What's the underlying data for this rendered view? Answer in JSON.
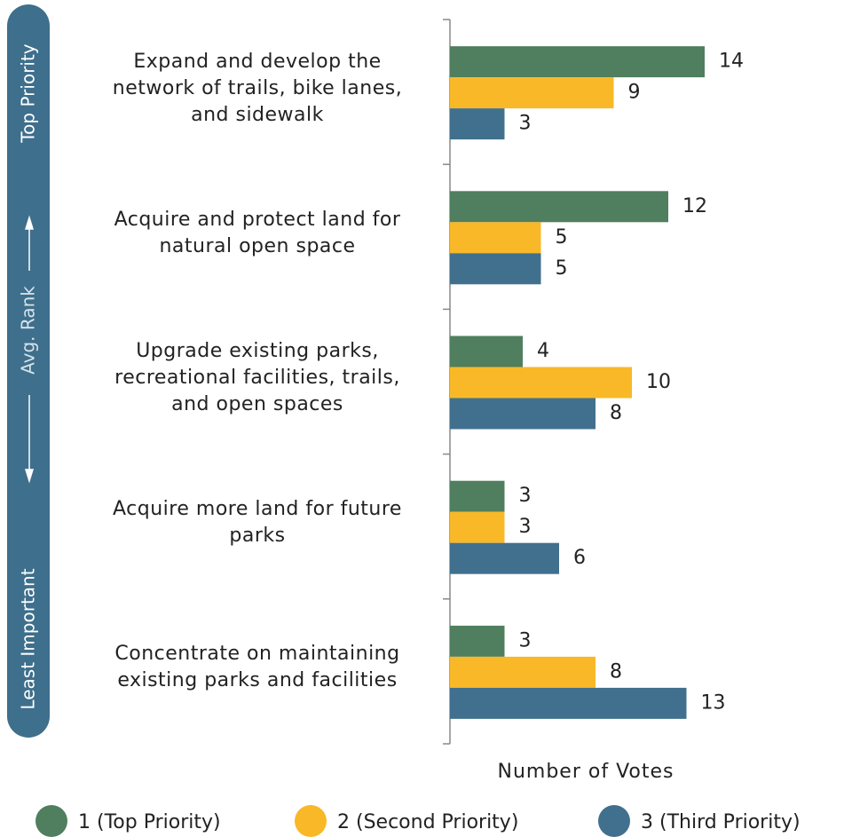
{
  "chart_data": {
    "type": "bar",
    "orientation": "horizontal",
    "categories": [
      "Expand and develop the\nnetwork of trails, bike lanes,\nand sidewalk",
      "Acquire and protect land for\nnatural open space",
      "Upgrade existing parks,\nrecreational facilities, trails,\nand open spaces",
      "Acquire more land for future\nparks",
      "Concentrate on maintaining\nexisting parks and facilities"
    ],
    "series": [
      {
        "name": "1 (Top Priority)",
        "color": "#4f7f5e",
        "values": [
          14,
          12,
          4,
          3,
          3
        ]
      },
      {
        "name": "2 (Second Priority)",
        "color": "#f8b827",
        "values": [
          9,
          5,
          10,
          3,
          8
        ]
      },
      {
        "name": "3 (Third Priority)",
        "color": "#41708e",
        "values": [
          3,
          5,
          8,
          6,
          13
        ]
      }
    ],
    "xlabel": "Number of Votes",
    "xlim": [
      0,
      21
    ],
    "side_labels": {
      "top": "Top Priority",
      "middle": "Avg. Rank",
      "bottom": "Least Important"
    },
    "side_color": "#3e6f8c",
    "legend": "bottom"
  }
}
